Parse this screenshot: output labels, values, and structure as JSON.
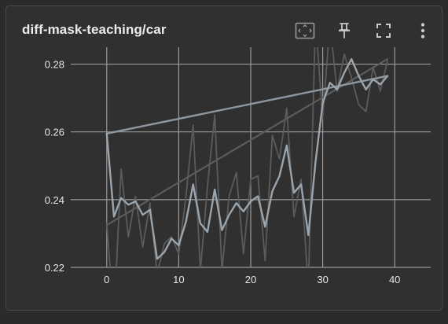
{
  "card": {
    "title": "diff-mask-teaching/car",
    "toolbar": {
      "fit_icon": "fit-to-data-icon",
      "pin_icon": "pin-icon",
      "fullscreen_icon": "fullscreen-icon",
      "more_icon": "more-vert-icon"
    }
  },
  "chart_data": {
    "type": "line",
    "xlim": [
      -5,
      45
    ],
    "ylim": [
      0.22,
      0.285
    ],
    "x_ticks": [
      0,
      10,
      20,
      30,
      40
    ],
    "y_ticks": [
      0.22,
      0.24,
      0.26,
      0.28
    ],
    "x_tick_labels": [
      "0",
      "10",
      "20",
      "30",
      "40"
    ],
    "y_tick_labels": [
      "0.22",
      "0.24",
      "0.26",
      "0.28"
    ],
    "grid": true,
    "colors": {
      "raw": "#5b5b5b",
      "smoothed": "#9aa4ad",
      "trend": "#8e979f",
      "trend_secondary": "#5c5c5c",
      "grid": "#9a9a9a"
    },
    "series": [
      {
        "role": "raw",
        "x": [
          0,
          1,
          2,
          3,
          4,
          5,
          6,
          7,
          8,
          9,
          10,
          11,
          12,
          13,
          14,
          15,
          16,
          17,
          18,
          19,
          20,
          21,
          22,
          23,
          24,
          25,
          26,
          27,
          28,
          29,
          30,
          31,
          32,
          33,
          34,
          35,
          36,
          37,
          38,
          39
        ],
        "y": [
          0.233,
          0.205,
          0.249,
          0.229,
          0.241,
          0.226,
          0.239,
          0.218,
          0.227,
          0.229,
          0.224,
          0.241,
          0.262,
          0.219,
          0.244,
          0.265,
          0.219,
          0.241,
          0.248,
          0.224,
          0.246,
          0.247,
          0.222,
          0.259,
          0.252,
          0.267,
          0.235,
          0.246,
          0.214,
          0.293,
          0.264,
          0.292,
          0.272,
          0.283,
          0.276,
          0.268,
          0.266,
          0.279,
          0.272,
          0.281
        ]
      },
      {
        "role": "smoothed",
        "x": [
          0,
          1,
          2,
          3,
          4,
          5,
          6,
          7,
          8,
          9,
          10,
          11,
          12,
          13,
          14,
          15,
          16,
          17,
          18,
          19,
          20,
          21,
          22,
          23,
          24,
          25,
          26,
          27,
          28,
          29,
          30,
          31,
          32,
          33,
          34,
          35,
          36,
          37,
          38,
          39
        ],
        "y": [
          0.2595,
          0.235,
          0.2405,
          0.2385,
          0.2395,
          0.2355,
          0.237,
          0.2225,
          0.2245,
          0.2285,
          0.2265,
          0.2335,
          0.2445,
          0.233,
          0.2305,
          0.243,
          0.231,
          0.2355,
          0.239,
          0.2365,
          0.2395,
          0.241,
          0.232,
          0.2425,
          0.247,
          0.256,
          0.242,
          0.2445,
          0.2295,
          0.251,
          0.2685,
          0.2745,
          0.2725,
          0.2775,
          0.2815,
          0.2765,
          0.2725,
          0.2755,
          0.274,
          0.2765
        ]
      },
      {
        "role": "trend",
        "x": [
          0,
          39
        ],
        "y": [
          0.2595,
          0.2765
        ]
      },
      {
        "role": "trend_secondary",
        "x": [
          0,
          39
        ],
        "y": [
          0.2325,
          0.2815
        ]
      }
    ]
  }
}
